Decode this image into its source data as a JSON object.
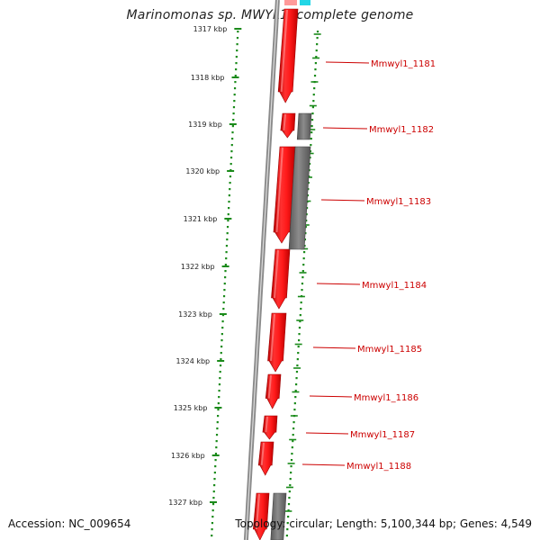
{
  "map": {
    "title": "Marinomonas sp. MWYL1, complete genome",
    "accession": "Accession: NC_009654",
    "summary": "Topology: circular; Length: 5,100,344 bp; Genes: 4,549",
    "kbp_labels": [
      "1317 kbp",
      "1318 kbp",
      "1319 kbp",
      "1320 kbp",
      "1321 kbp",
      "1322 kbp",
      "1323 kbp",
      "1324 kbp",
      "1325 kbp",
      "1326 kbp",
      "1327 kbp"
    ],
    "gene_labels": [
      "Mmwyl1_1181",
      "Mmwyl1_1182",
      "Mmwyl1_1183",
      "Mmwyl1_1184",
      "Mmwyl1_1185",
      "Mmwyl1_1186",
      "Mmwyl1_1187",
      "Mmwyl1_1188"
    ],
    "colors": {
      "gene": "#ee1111",
      "gene_light": "#ff7b7b",
      "gene_dark": "#b00000",
      "other_feature": "#707070",
      "backbone": "#8a8a8a",
      "scale": "#1a8a1a",
      "label": "#cc0000",
      "rna": "#22d6e6"
    }
  }
}
